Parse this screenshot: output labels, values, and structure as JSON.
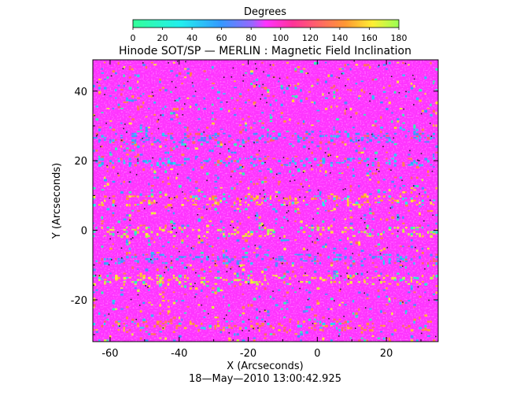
{
  "chart_data": {
    "type": "heatmap",
    "title": "Hinode SOT/SP — MERLIN : Magnetic Field Inclination",
    "xlabel": "X (Arcseconds)",
    "ylabel": "Y (Arcseconds)",
    "timestamp": "18—May—2010 13:00:42.925",
    "xlim": [
      -65,
      35
    ],
    "ylim": [
      -32,
      49
    ],
    "x_ticks": [
      -60,
      -40,
      -20,
      0,
      20
    ],
    "y_ticks": [
      -20,
      0,
      20,
      40
    ],
    "colorbar": {
      "label": "Degrees",
      "range": [
        0,
        180
      ],
      "ticks": [
        0,
        20,
        40,
        60,
        80,
        100,
        120,
        140,
        160,
        180
      ]
    },
    "dominant_value_deg": 90,
    "features": [
      {
        "kind": "low-inclination band",
        "y": 27,
        "value_deg": 55
      },
      {
        "kind": "low-inclination band",
        "y": 20,
        "value_deg": 45
      },
      {
        "kind": "low-inclination band",
        "y": -8,
        "value_deg": 55
      },
      {
        "kind": "high-inclination band",
        "y": 9,
        "value_deg": 150
      },
      {
        "kind": "high-inclination band",
        "y": 0,
        "value_deg": 165
      },
      {
        "kind": "high-inclination band",
        "y": -14,
        "value_deg": 160
      },
      {
        "kind": "high-inclination band",
        "y": -27,
        "value_deg": 140
      }
    ],
    "colors": {
      "background": "#ffffff",
      "axis": "#000000",
      "map_base": "#ff33ff"
    }
  }
}
